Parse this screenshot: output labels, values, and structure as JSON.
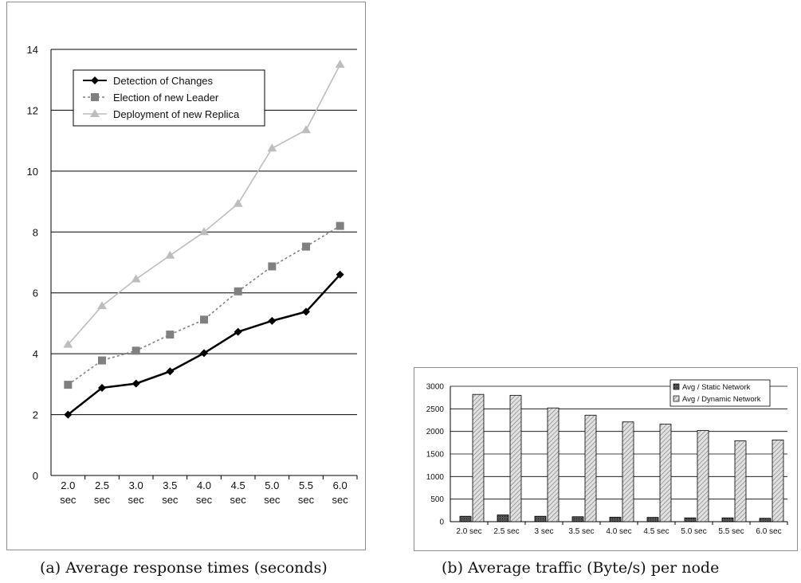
{
  "chart_data": [
    {
      "type": "line",
      "caption": "(a) Average response times (seconds)",
      "categories": [
        [
          "2.0",
          "sec"
        ],
        [
          "2.5",
          "sec"
        ],
        [
          "3.0",
          "sec"
        ],
        [
          "3.5",
          "sec"
        ],
        [
          "4.0",
          "sec"
        ],
        [
          "4.5",
          "sec"
        ],
        [
          "5.0",
          "sec"
        ],
        [
          "5.5",
          "sec"
        ],
        [
          "6.0",
          "sec"
        ]
      ],
      "ylim": [
        0,
        14
      ],
      "yticks": [
        0,
        2,
        4,
        6,
        8,
        10,
        12,
        14
      ],
      "grid": true,
      "legend_position": "top-left",
      "series": [
        {
          "name": "Detection of Changes",
          "values": [
            2.0,
            2.88,
            3.02,
            3.42,
            4.02,
            4.72,
            5.08,
            5.38,
            6.6
          ],
          "color": "#000000",
          "marker": "diamond",
          "dash": "solid"
        },
        {
          "name": "Election of new Leader",
          "values": [
            2.98,
            3.78,
            4.1,
            4.63,
            5.12,
            6.05,
            6.87,
            7.52,
            8.2
          ],
          "color": "#808080",
          "marker": "square",
          "dash": "dotted"
        },
        {
          "name": "Deployment of new Replica",
          "values": [
            4.3,
            5.57,
            6.45,
            7.23,
            8.0,
            8.93,
            10.75,
            11.35,
            13.5
          ],
          "color": "#bdbdbd",
          "marker": "triangle",
          "dash": "solid"
        }
      ]
    },
    {
      "type": "bar",
      "caption": "(b) Average traffic (Byte/s) per node",
      "categories": [
        "2.0 sec",
        "2.5 sec",
        "3 sec",
        "3.5 sec",
        "4.0 sec",
        "4.5 sec",
        "5.0 sec",
        "5.5 sec",
        "6.0 sec"
      ],
      "ylim": [
        0,
        3000
      ],
      "yticks": [
        0,
        500,
        1000,
        1500,
        2000,
        2500,
        3000
      ],
      "grid": true,
      "legend_position": "top-right",
      "series": [
        {
          "name": "Avg / Static Network",
          "values": [
            120,
            150,
            120,
            110,
            100,
            95,
            85,
            85,
            75
          ],
          "color": "#333333",
          "pattern": "dots"
        },
        {
          "name": "Avg / Dynamic Network",
          "values": [
            2820,
            2800,
            2520,
            2360,
            2210,
            2160,
            2020,
            1790,
            1810
          ],
          "color": "#d4d4d4",
          "pattern": "hatch"
        }
      ]
    }
  ]
}
